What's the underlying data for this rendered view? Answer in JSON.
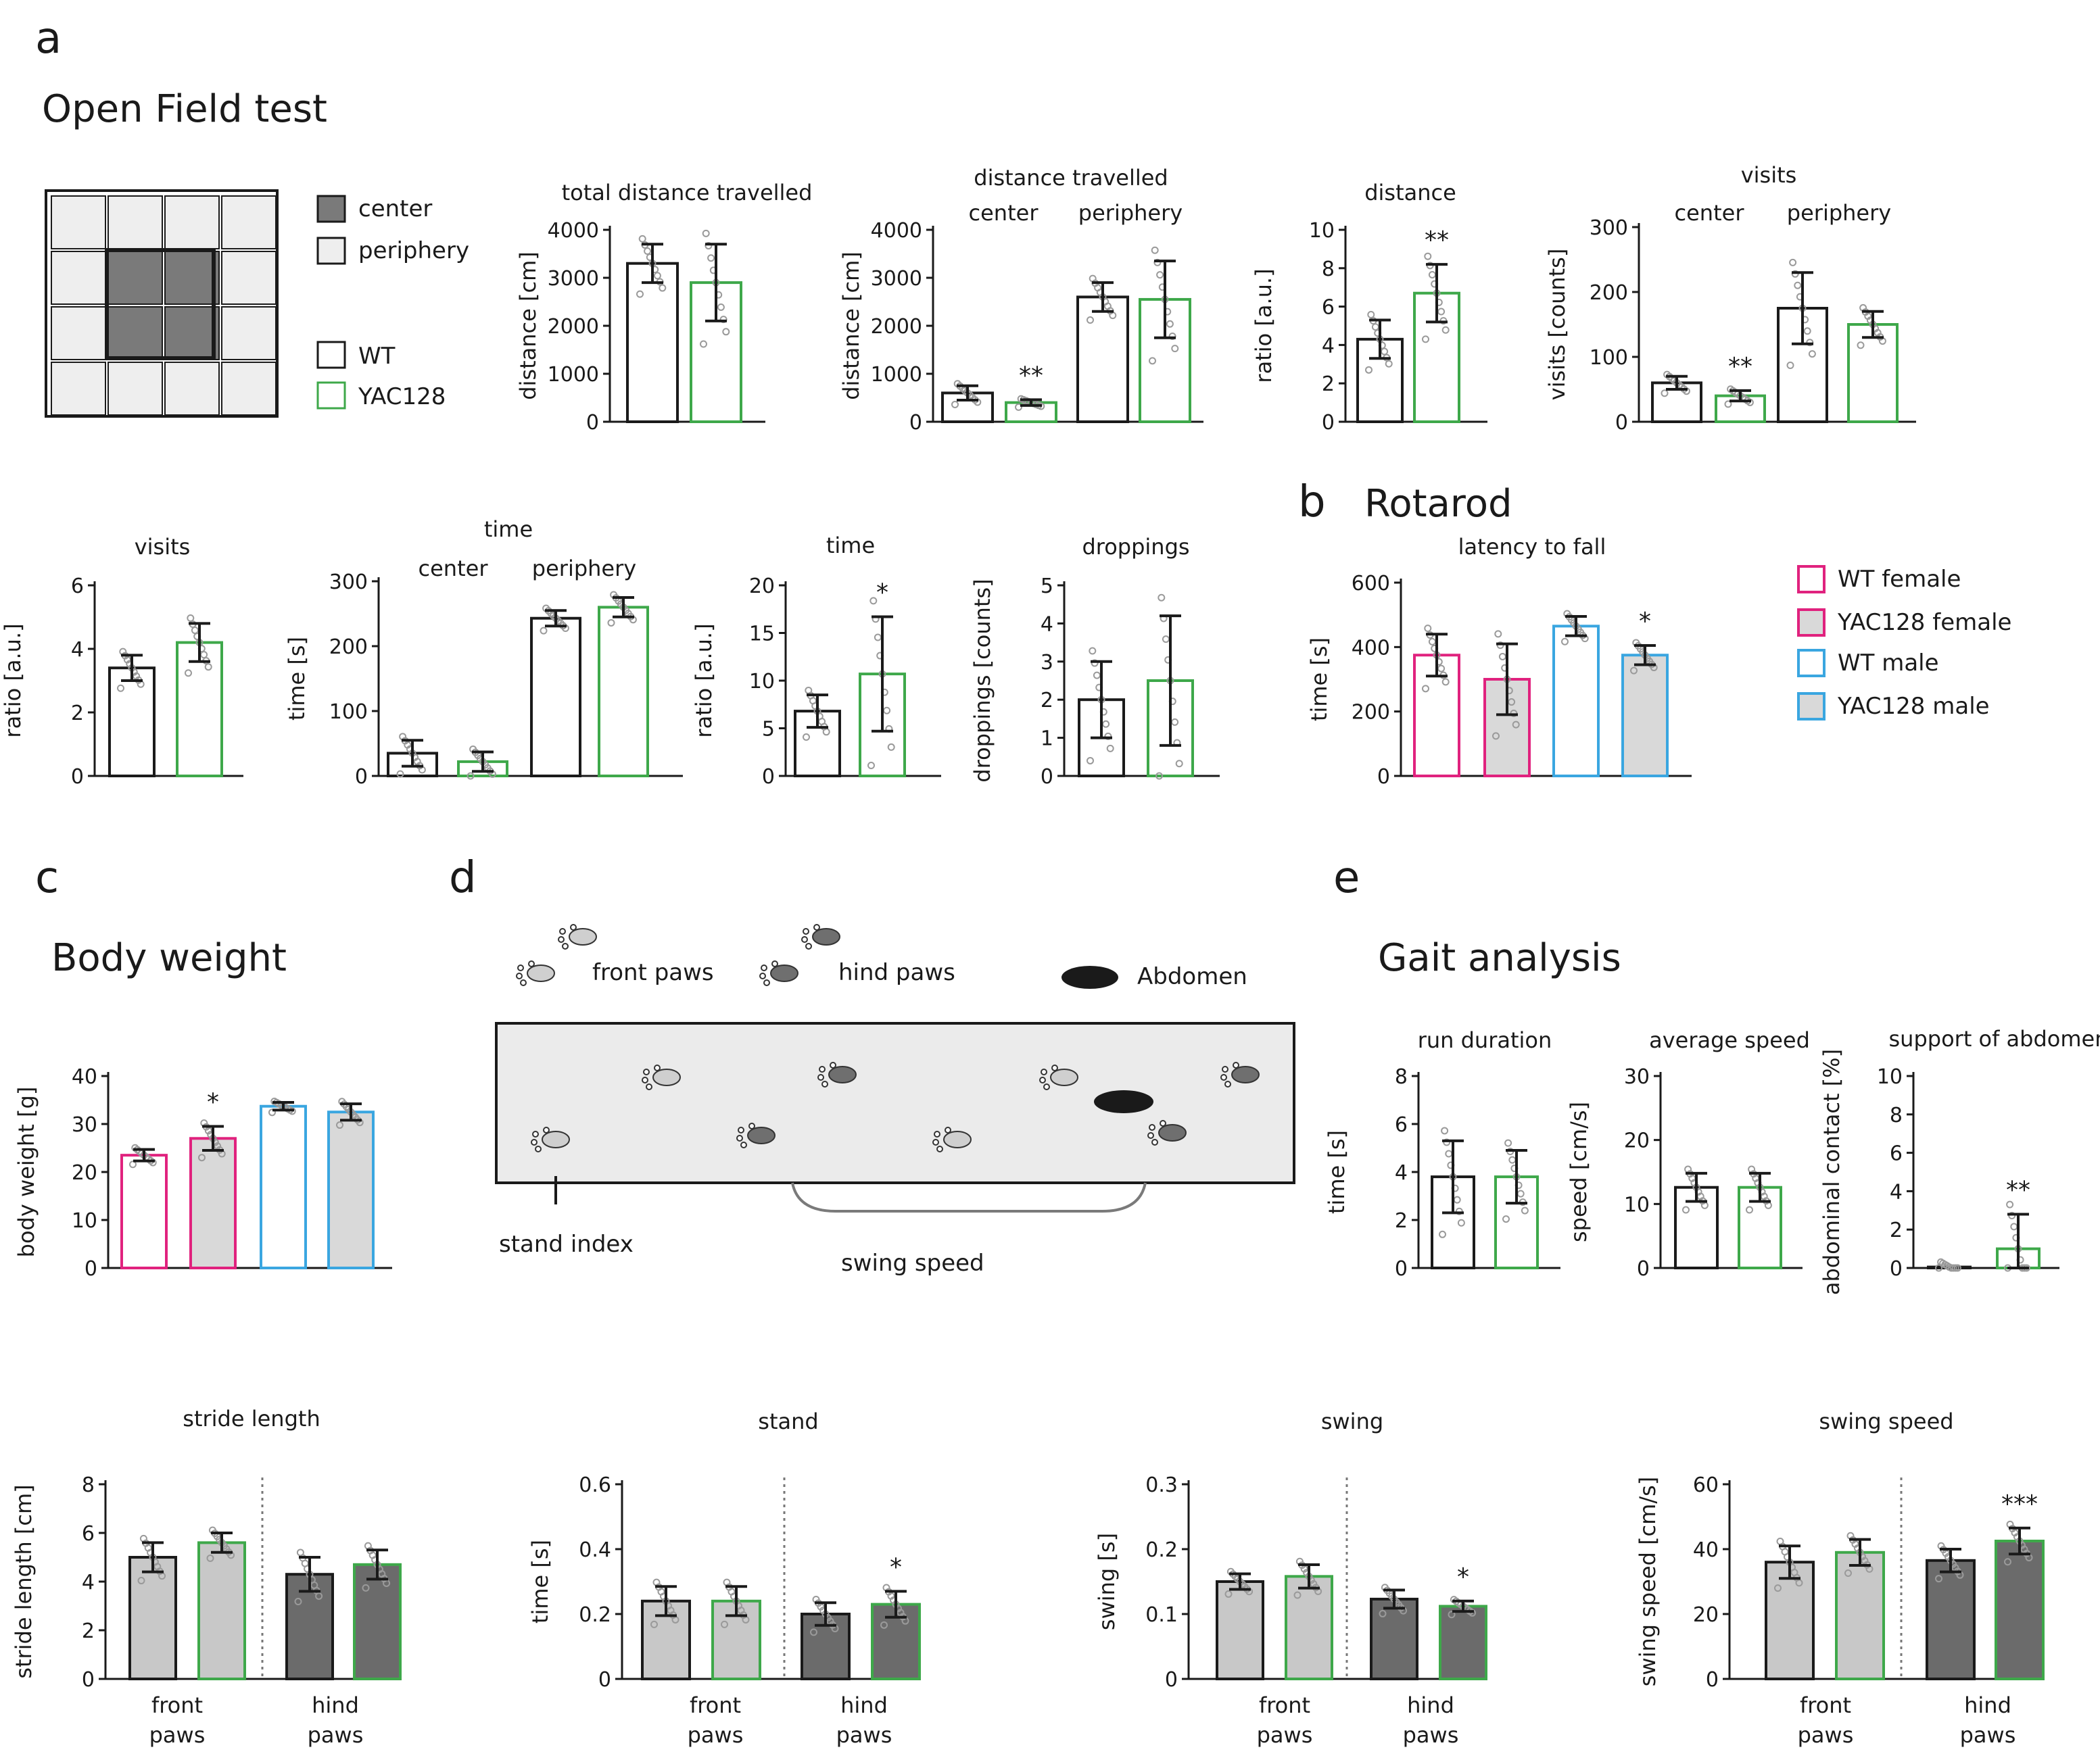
{
  "panels": {
    "a": {
      "letter": "a",
      "title": "Open Field test"
    },
    "b": {
      "letter": "b",
      "title": "Rotarod"
    },
    "c": {
      "letter": "c",
      "title": "Body weight"
    },
    "d": {
      "letter": "d"
    },
    "e": {
      "letter": "e",
      "title": "Gait analysis"
    }
  },
  "legend_a": {
    "center": "center",
    "periphery": "periphery",
    "wt": "WT",
    "yac": "YAC128"
  },
  "legend_b": {
    "wt_female": "WT female",
    "yac_female": "YAC128 female",
    "wt_male": "WT male",
    "yac_male": "YAC128 male"
  },
  "diagram_d": {
    "front_paws": "front paws",
    "hind_paws": "hind paws",
    "abdomen": "Abdomen",
    "stand_index": "stand index",
    "swing_speed": "swing speed"
  },
  "colors": {
    "wt": "#1a1a1a",
    "yac": "#3ea84a",
    "female": "#e0227e",
    "male": "#3aa6e0",
    "light_fill": "#d9d9d9",
    "light_gray_bar": "#c8c8c8",
    "dark_gray_bar": "#6b6b6b"
  },
  "chart_data": [
    {
      "id": "total_distance",
      "type": "bar",
      "title": "total distance travelled",
      "ylabel": "distance [cm]",
      "ylim": [
        0,
        4000
      ],
      "yticks": [
        0,
        1000,
        2000,
        3000,
        4000
      ],
      "bars": [
        {
          "value": 3300,
          "err": 400,
          "style": "wt"
        },
        {
          "value": 2900,
          "err": 800,
          "style": "yac"
        }
      ],
      "marks": []
    },
    {
      "id": "distance_cp",
      "type": "bar",
      "title": "distance travelled",
      "subtitles": [
        "center",
        "periphery"
      ],
      "ylabel": "distance [cm]",
      "ylim": [
        0,
        4000
      ],
      "yticks": [
        0,
        1000,
        2000,
        3000,
        4000
      ],
      "bars": [
        {
          "value": 600,
          "err": 150,
          "style": "wt"
        },
        {
          "value": 400,
          "err": 60,
          "style": "yac"
        },
        {
          "value": 2600,
          "err": 300,
          "style": "wt"
        },
        {
          "value": 2550,
          "err": 800,
          "style": "yac"
        }
      ],
      "marks": [
        {
          "text": "**",
          "bar": 1
        }
      ]
    },
    {
      "id": "distance_ratio",
      "type": "bar",
      "title": "distance",
      "ylabel": "ratio [a.u.]",
      "ylim": [
        0,
        10
      ],
      "yticks": [
        0,
        2,
        4,
        6,
        8,
        10
      ],
      "bars": [
        {
          "value": 4.3,
          "err": 1.0,
          "style": "wt"
        },
        {
          "value": 6.7,
          "err": 1.5,
          "style": "yac"
        }
      ],
      "marks": [
        {
          "text": "**",
          "bar": 1
        }
      ]
    },
    {
      "id": "visits_cp",
      "type": "bar",
      "title": "visits",
      "subtitles": [
        "center",
        "periphery"
      ],
      "ylabel": "visits [counts]",
      "ylim": [
        0,
        300
      ],
      "yticks": [
        0,
        100,
        200,
        300
      ],
      "bars": [
        {
          "value": 60,
          "err": 10,
          "style": "wt"
        },
        {
          "value": 40,
          "err": 8,
          "style": "yac"
        },
        {
          "value": 175,
          "err": 55,
          "style": "wt"
        },
        {
          "value": 150,
          "err": 20,
          "style": "yac"
        }
      ],
      "marks": [
        {
          "text": "**",
          "bar": 1
        }
      ]
    },
    {
      "id": "visits_ratio",
      "type": "bar",
      "title": "visits",
      "ylabel": "ratio [a.u.]",
      "ylim": [
        0,
        6
      ],
      "yticks": [
        0,
        2,
        4,
        6
      ],
      "bars": [
        {
          "value": 3.4,
          "err": 0.4,
          "style": "wt"
        },
        {
          "value": 4.2,
          "err": 0.6,
          "style": "yac"
        }
      ],
      "marks": []
    },
    {
      "id": "time_cp",
      "type": "bar",
      "title": "time",
      "subtitles": [
        "center",
        "periphery"
      ],
      "ylabel": "time [s]",
      "ylim": [
        0,
        300
      ],
      "yticks": [
        0,
        100,
        200,
        300
      ],
      "bars": [
        {
          "value": 35,
          "err": 20,
          "style": "wt"
        },
        {
          "value": 22,
          "err": 15,
          "style": "yac"
        },
        {
          "value": 243,
          "err": 12,
          "style": "wt"
        },
        {
          "value": 260,
          "err": 15,
          "style": "yac"
        }
      ],
      "marks": []
    },
    {
      "id": "time_ratio",
      "type": "bar",
      "title": "time",
      "ylabel": "ratio [a.u.]",
      "ylim": [
        0,
        20
      ],
      "yticks": [
        0,
        5,
        10,
        15,
        20
      ],
      "bars": [
        {
          "value": 6.8,
          "err": 1.7,
          "style": "wt"
        },
        {
          "value": 10.7,
          "err": 6.0,
          "style": "yac"
        }
      ],
      "marks": [
        {
          "text": "*",
          "bar": 1
        }
      ]
    },
    {
      "id": "droppings",
      "type": "bar",
      "title": "droppings",
      "ylabel": "droppings [counts]",
      "ylim": [
        0,
        5
      ],
      "yticks": [
        0,
        1,
        2,
        3,
        4,
        5
      ],
      "bars": [
        {
          "value": 2.0,
          "err": 1.0,
          "style": "wt"
        },
        {
          "value": 2.5,
          "err": 1.7,
          "style": "yac"
        }
      ],
      "marks": []
    },
    {
      "id": "rotarod",
      "type": "bar",
      "title": "latency to fall",
      "ylabel": "time [s]",
      "ylim": [
        0,
        600
      ],
      "yticks": [
        0,
        200,
        400,
        600
      ],
      "bars": [
        {
          "value": 375,
          "err": 65,
          "style": "f_wt"
        },
        {
          "value": 300,
          "err": 110,
          "style": "f_yac"
        },
        {
          "value": 465,
          "err": 30,
          "style": "m_wt"
        },
        {
          "value": 375,
          "err": 30,
          "style": "m_yac"
        }
      ],
      "marks": [
        {
          "text": "*",
          "bar": 3
        }
      ]
    },
    {
      "id": "body_weight",
      "type": "bar",
      "title": "",
      "ylabel": "body weight [g]",
      "ylim": [
        0,
        40
      ],
      "yticks": [
        0,
        10,
        20,
        30,
        40
      ],
      "bars": [
        {
          "value": 23.5,
          "err": 1.2,
          "style": "f_wt"
        },
        {
          "value": 27,
          "err": 2.5,
          "style": "f_yac"
        },
        {
          "value": 33.7,
          "err": 0.8,
          "style": "m_wt"
        },
        {
          "value": 32.5,
          "err": 1.7,
          "style": "m_yac"
        }
      ],
      "marks": [
        {
          "text": "*",
          "bar": 1
        }
      ]
    },
    {
      "id": "run_duration",
      "type": "bar",
      "title": "run duration",
      "ylabel": "time [s]",
      "ylim": [
        0,
        8
      ],
      "yticks": [
        0,
        2,
        4,
        6,
        8
      ],
      "bars": [
        {
          "value": 3.8,
          "err": 1.5,
          "style": "wt"
        },
        {
          "value": 3.8,
          "err": 1.1,
          "style": "yac"
        }
      ],
      "marks": []
    },
    {
      "id": "average_speed",
      "type": "bar",
      "title": "average speed",
      "ylabel": "speed [cm/s]",
      "ylim": [
        0,
        30
      ],
      "yticks": [
        0,
        10,
        20,
        30
      ],
      "bars": [
        {
          "value": 12.6,
          "err": 2.2,
          "style": "wt"
        },
        {
          "value": 12.6,
          "err": 2.2,
          "style": "yac"
        }
      ],
      "marks": []
    },
    {
      "id": "support_abdomen",
      "type": "bar",
      "title": "support of abdomen",
      "ylabel": "abdominal contact [%]",
      "ylim": [
        0,
        10
      ],
      "yticks": [
        0,
        2,
        4,
        6,
        8,
        10
      ],
      "bars": [
        {
          "value": 0.05,
          "err": 0,
          "style": "wt"
        },
        {
          "value": 1.0,
          "err": 1.8,
          "style": "yac"
        }
      ],
      "marks": [
        {
          "text": "**",
          "bar": 1
        }
      ]
    },
    {
      "id": "stride_length",
      "type": "bar",
      "title": "stride length",
      "ylabel": "stride length [cm]",
      "ylim": [
        0,
        8
      ],
      "yticks": [
        0,
        2,
        4,
        6,
        8
      ],
      "groups": [
        "front paws",
        "hind paws"
      ],
      "bars": [
        {
          "value": 5.0,
          "err": 0.6,
          "style": "lg_wt"
        },
        {
          "value": 5.6,
          "err": 0.4,
          "style": "lg_yac"
        },
        {
          "value": 4.3,
          "err": 0.7,
          "style": "dg_wt"
        },
        {
          "value": 4.7,
          "err": 0.6,
          "style": "dg_yac"
        }
      ],
      "marks": []
    },
    {
      "id": "stand",
      "type": "bar",
      "title": "stand",
      "ylabel": "time [s]",
      "ylim": [
        0,
        0.6
      ],
      "yticks": [
        0,
        0.2,
        0.4,
        0.6
      ],
      "groups": [
        "front paws",
        "hind paws"
      ],
      "bars": [
        {
          "value": 0.24,
          "err": 0.045,
          "style": "lg_wt"
        },
        {
          "value": 0.24,
          "err": 0.045,
          "style": "lg_yac"
        },
        {
          "value": 0.2,
          "err": 0.035,
          "style": "dg_wt"
        },
        {
          "value": 0.23,
          "err": 0.04,
          "style": "dg_yac"
        }
      ],
      "marks": [
        {
          "text": "*",
          "bar": 3
        }
      ]
    },
    {
      "id": "swing",
      "type": "bar",
      "title": "swing",
      "ylabel": "swing [s]",
      "ylim": [
        0,
        0.3
      ],
      "yticks": [
        0,
        0.1,
        0.2,
        0.3
      ],
      "groups": [
        "front paws",
        "hind paws"
      ],
      "bars": [
        {
          "value": 0.15,
          "err": 0.012,
          "style": "lg_wt"
        },
        {
          "value": 0.158,
          "err": 0.018,
          "style": "lg_yac"
        },
        {
          "value": 0.123,
          "err": 0.014,
          "style": "dg_wt"
        },
        {
          "value": 0.112,
          "err": 0.008,
          "style": "dg_yac"
        }
      ],
      "marks": [
        {
          "text": "*",
          "bar": 3
        }
      ]
    },
    {
      "id": "swing_speed",
      "type": "bar",
      "title": "swing speed",
      "ylabel": "swing speed [cm/s]",
      "ylim": [
        0,
        60
      ],
      "yticks": [
        0,
        20,
        40,
        60
      ],
      "groups": [
        "front paws",
        "hind paws"
      ],
      "bars": [
        {
          "value": 36,
          "err": 5,
          "style": "lg_wt"
        },
        {
          "value": 39,
          "err": 4,
          "style": "lg_yac"
        },
        {
          "value": 36.5,
          "err": 3.5,
          "style": "dg_wt"
        },
        {
          "value": 42.5,
          "err": 4,
          "style": "dg_yac"
        }
      ],
      "marks": [
        {
          "text": "***",
          "bar": 3
        }
      ]
    }
  ]
}
